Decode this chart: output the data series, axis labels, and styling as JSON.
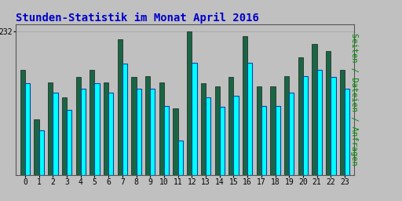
{
  "title": "Stunden-Statistik im Monat April 2016",
  "ylabel": "Seiten / Dateien / Anfragen",
  "hours": [
    0,
    1,
    2,
    3,
    4,
    5,
    6,
    7,
    8,
    9,
    10,
    11,
    12,
    13,
    14,
    15,
    16,
    17,
    18,
    19,
    20,
    21,
    22,
    23
  ],
  "green_values": [
    170,
    90,
    150,
    125,
    158,
    170,
    150,
    220,
    158,
    160,
    150,
    108,
    232,
    148,
    143,
    158,
    225,
    143,
    143,
    160,
    190,
    212,
    200,
    170
  ],
  "cyan_values": [
    148,
    72,
    133,
    105,
    140,
    148,
    133,
    180,
    140,
    140,
    112,
    55,
    182,
    125,
    110,
    128,
    182,
    112,
    112,
    133,
    160,
    170,
    158,
    140
  ],
  "bar_width": 0.35,
  "ylim_max": 244,
  "ytick_val": 232,
  "grid_color": "#aaaaaa",
  "bg_color": "#c0c0c0",
  "plot_bg": "#c0c0c0",
  "green_color": "#1a6644",
  "cyan_color": "#00ffff",
  "cyan_edge_color": "#0044aa",
  "green_edge_color": "#000000",
  "title_color": "#0000cc",
  "title_fontsize": 10,
  "ylabel_color": "#008800",
  "ylabel_fontsize": 7.5,
  "tick_fontsize": 7,
  "border_color": "#555555"
}
